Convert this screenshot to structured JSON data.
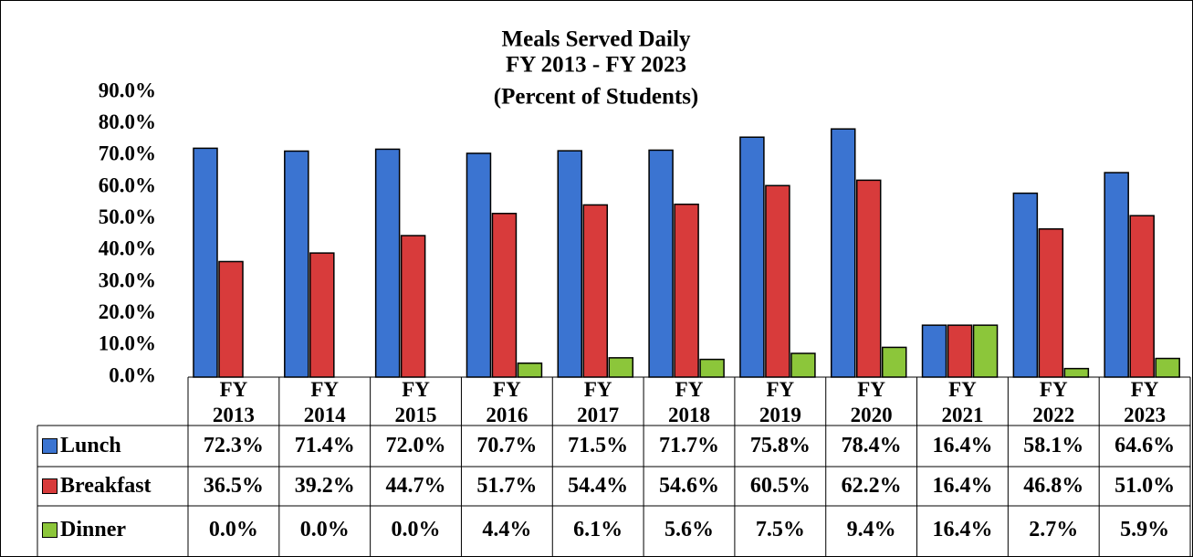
{
  "chart_data": {
    "type": "bar",
    "title": "Meals Served Daily",
    "subtitle": [
      "FY 2013 - FY 2023",
      "(Percent of Students)"
    ],
    "categories": [
      "FY 2013",
      "FY 2014",
      "FY 2015",
      "FY 2016",
      "FY 2017",
      "FY 2018",
      "FY 2019",
      "FY 2020",
      "FY 2021",
      "FY 2022",
      "FY 2023"
    ],
    "series": [
      {
        "name": "Lunch",
        "color": "#3b74d1",
        "values": [
          72.3,
          71.4,
          72.0,
          70.7,
          71.5,
          71.7,
          75.8,
          78.4,
          16.4,
          58.1,
          64.6
        ],
        "value_labels": [
          "72.3%",
          "71.4%",
          "72.0%",
          "70.7%",
          "71.5%",
          "71.7%",
          "75.8%",
          "78.4%",
          "16.4%",
          "58.1%",
          "64.6%"
        ]
      },
      {
        "name": "Breakfast",
        "color": "#d83b3b",
        "values": [
          36.5,
          39.2,
          44.7,
          51.7,
          54.4,
          54.6,
          60.5,
          62.2,
          16.4,
          46.8,
          51.0
        ],
        "value_labels": [
          "36.5%",
          "39.2%",
          "44.7%",
          "51.7%",
          "54.4%",
          "54.6%",
          "60.5%",
          "62.2%",
          "16.4%",
          "46.8%",
          "51.0%"
        ]
      },
      {
        "name": "Dinner",
        "color": "#8cc63a",
        "values": [
          0.0,
          0.0,
          0.0,
          4.4,
          6.1,
          5.6,
          7.5,
          9.4,
          16.4,
          2.7,
          5.9
        ],
        "value_labels": [
          "0.0%",
          "0.0%",
          "0.0%",
          "4.4%",
          "6.1%",
          "5.6%",
          "7.5%",
          "9.4%",
          "16.4%",
          "2.7%",
          "5.9%"
        ]
      }
    ],
    "ylim": [
      0,
      90
    ],
    "yticks": [
      {
        "value": 0,
        "label": "0.0%"
      },
      {
        "value": 10,
        "label": "10.0%"
      },
      {
        "value": 20,
        "label": "20.0%"
      },
      {
        "value": 30,
        "label": "30.0%"
      },
      {
        "value": 40,
        "label": "40.0%"
      },
      {
        "value": 50,
        "label": "50.0%"
      },
      {
        "value": 60,
        "label": "60.0%"
      },
      {
        "value": 70,
        "label": "70.0%"
      },
      {
        "value": 80,
        "label": "80.0%"
      },
      {
        "value": 90,
        "label": "90.0%"
      }
    ],
    "grid": false
  }
}
